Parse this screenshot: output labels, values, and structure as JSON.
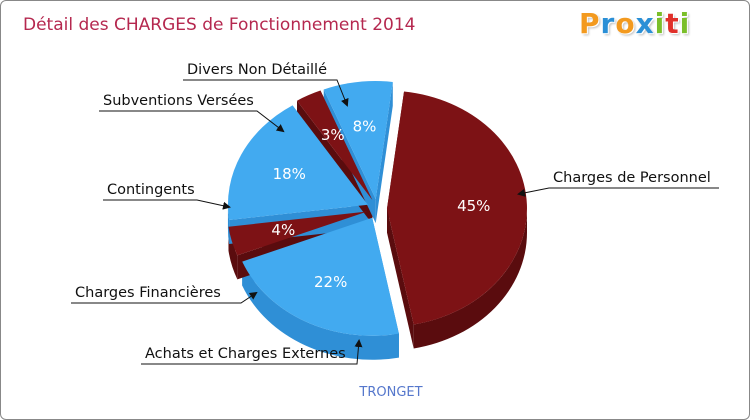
{
  "title": "Détail des CHARGES de Fonctionnement 2014",
  "subtitle": "TRONGET",
  "logo": {
    "letters": [
      "P",
      "r",
      "o",
      "x",
      "i",
      "t",
      "i"
    ],
    "colors": [
      "#f39a1f",
      "#2a8fd6",
      "#f39a1f",
      "#2a8fd6",
      "#7bbf2a",
      "#e0302a",
      "#7bbf2a"
    ]
  },
  "colors": {
    "dark_red": "#7d1215",
    "dark_red_side": "#5a0c0e",
    "light_blue": "#42aaf0",
    "light_blue_side": "#2f8fd6"
  },
  "chart_data": {
    "type": "pie",
    "title": "Détail des CHARGES de Fonctionnement 2014",
    "subtitle": "TRONGET",
    "slices": [
      {
        "label": "Charges de Personnel",
        "value": 45,
        "pct_label": "45%",
        "color": "#7d1215"
      },
      {
        "label": "Achats et Charges Externes",
        "value": 22,
        "pct_label": "22%",
        "color": "#42aaf0"
      },
      {
        "label": "Charges Financières",
        "value": 4,
        "pct_label": "4%",
        "color": "#7d1215"
      },
      {
        "label": "Contingents",
        "value": 18,
        "pct_label": "18%",
        "color": "#42aaf0"
      },
      {
        "label": "Subventions Versées",
        "value": 3,
        "pct_label": "3%",
        "color": "#7d1215"
      },
      {
        "label": "Divers Non Détaillé",
        "value": 8,
        "pct_label": "8%",
        "color": "#42aaf0"
      }
    ]
  }
}
